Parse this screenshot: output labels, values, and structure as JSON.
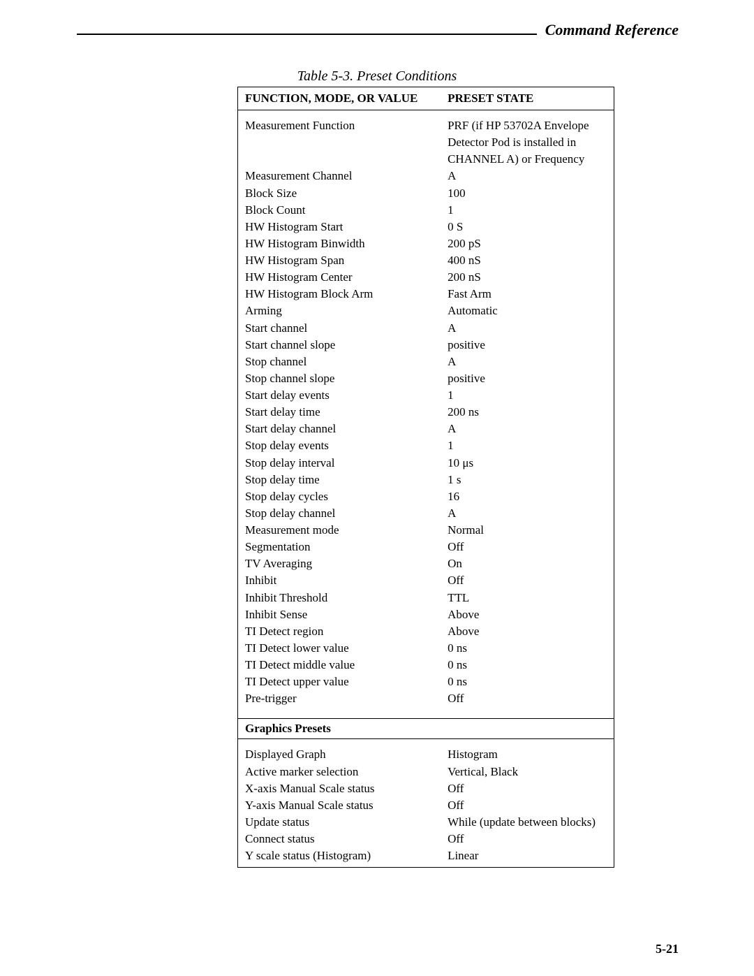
{
  "header": {
    "title": "Command Reference"
  },
  "caption": "Table 5-3. Preset Conditions",
  "columns": {
    "left": "FUNCTION, MODE, OR VALUE",
    "right": "PRESET STATE"
  },
  "section1_rows": [
    {
      "func": "Measurement Function",
      "state": "PRF (if HP 53702A Envelope Detector Pod is installed in CHANNEL A) or Frequency"
    },
    {
      "func": "Measurement Channel",
      "state": "A"
    },
    {
      "func": "Block Size",
      "state": "100"
    },
    {
      "func": "Block Count",
      "state": "1"
    },
    {
      "func": "HW Histogram Start",
      "state": "0 S"
    },
    {
      "func": "HW Histogram Binwidth",
      "state": "200 pS"
    },
    {
      "func": "HW Histogram Span",
      "state": "400 nS"
    },
    {
      "func": "HW Histogram Center",
      "state": "200 nS"
    },
    {
      "func": "HW Histogram Block Arm",
      "state": "Fast Arm"
    },
    {
      "func": "Arming",
      "state": "Automatic"
    },
    {
      "func": "Start channel",
      "state": "A"
    },
    {
      "func": "Start channel slope",
      "state": "positive"
    },
    {
      "func": "Stop channel",
      "state": "A"
    },
    {
      "func": "Stop channel slope",
      "state": "positive"
    },
    {
      "func": "Start delay events",
      "state": "1"
    },
    {
      "func": "Start delay time",
      "state": "200 ns"
    },
    {
      "func": "Start delay channel",
      "state": "A"
    },
    {
      "func": "Stop delay events",
      "state": "1"
    },
    {
      "func": "Stop delay interval",
      "state": "10 μs"
    },
    {
      "func": "Stop delay time",
      "state": "1 s"
    },
    {
      "func": "Stop delay cycles",
      "state": "16"
    },
    {
      "func": "Stop delay channel",
      "state": "A"
    },
    {
      "func": "Measurement mode",
      "state": "Normal"
    },
    {
      "func": "Segmentation",
      "state": "Off"
    },
    {
      "func": "TV Averaging",
      "state": "On"
    },
    {
      "func": "Inhibit",
      "state": "Off"
    },
    {
      "func": "Inhibit Threshold",
      "state": "TTL"
    },
    {
      "func": "Inhibit Sense",
      "state": "Above"
    },
    {
      "func": "TI Detect region",
      "state": "Above"
    },
    {
      "func": "TI Detect lower value",
      "state": "0 ns"
    },
    {
      "func": "TI Detect middle value",
      "state": "0 ns"
    },
    {
      "func": "TI Detect upper value",
      "state": "0 ns"
    },
    {
      "func": "Pre-trigger",
      "state": "Off"
    }
  ],
  "section2_heading": "Graphics Presets",
  "section2_rows": [
    {
      "func": "Displayed Graph",
      "state": "Histogram"
    },
    {
      "func": "Active marker selection",
      "state": "Vertical, Black"
    },
    {
      "func": "X-axis Manual Scale status",
      "state": "Off"
    },
    {
      "func": "Y-axis Manual Scale status",
      "state": "Off"
    },
    {
      "func": "Update status",
      "state": "While (update between blocks)"
    },
    {
      "func": "Connect status",
      "state": "Off"
    },
    {
      "func": "Y scale status (Histogram)",
      "state": "Linear"
    }
  ],
  "page_number": "5-21"
}
